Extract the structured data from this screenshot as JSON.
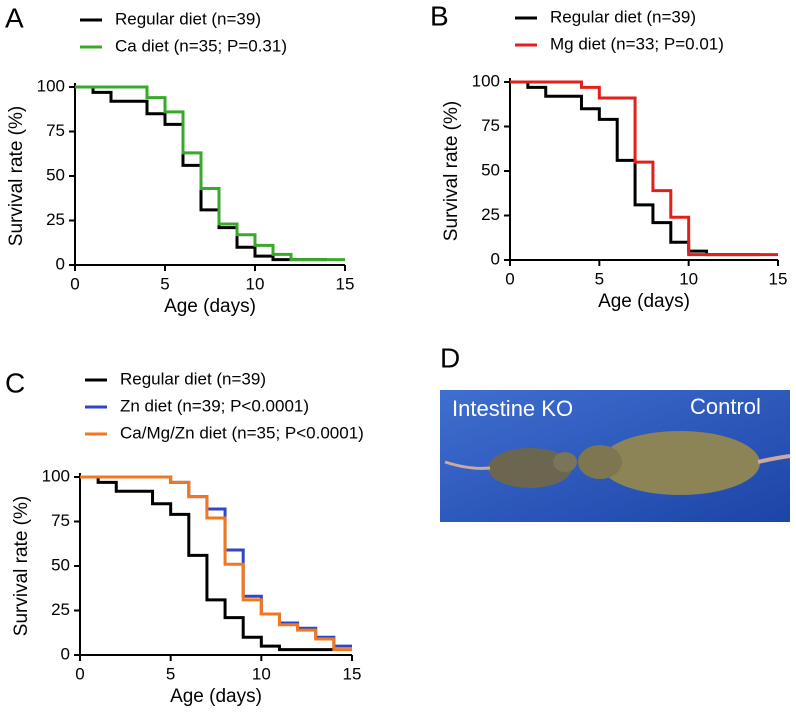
{
  "chart_data": [
    {
      "type": "step",
      "label": "A",
      "xlabel": "Age (days)",
      "ylabel": "Survival rate (%)",
      "xlim": [
        0,
        15
      ],
      "ylim": [
        0,
        100
      ],
      "xticks": [
        0,
        5,
        10,
        15
      ],
      "yticks": [
        0,
        25,
        50,
        75,
        100
      ],
      "series": [
        {
          "name": "Regular diet (n=39)",
          "color": "#000000",
          "x": [
            0,
            1,
            2,
            4,
            5,
            6,
            7,
            8,
            9,
            10,
            11,
            14
          ],
          "values": [
            100,
            97,
            92,
            85,
            79,
            56,
            31,
            21,
            10,
            5,
            3,
            3
          ]
        },
        {
          "name": "Ca diet (n=35; P=0.31)",
          "color": "#3aa82a",
          "x": [
            0,
            4,
            5,
            6,
            7,
            8,
            9,
            10,
            11,
            12,
            15
          ],
          "values": [
            100,
            94,
            86,
            63,
            43,
            23,
            17,
            11,
            6,
            3,
            3
          ]
        }
      ]
    },
    {
      "type": "step",
      "label": "B",
      "xlabel": "Age (days)",
      "ylabel": "Survival rate (%)",
      "xlim": [
        0,
        15
      ],
      "ylim": [
        0,
        100
      ],
      "xticks": [
        0,
        5,
        10,
        15
      ],
      "yticks": [
        0,
        25,
        50,
        75,
        100
      ],
      "series": [
        {
          "name": "Regular diet (n=39)",
          "color": "#000000",
          "x": [
            0,
            1,
            2,
            4,
            5,
            6,
            7,
            8,
            9,
            10,
            11,
            14
          ],
          "values": [
            100,
            97,
            92,
            85,
            79,
            56,
            31,
            21,
            10,
            5,
            3,
            3
          ]
        },
        {
          "name": "Mg diet (n=33; P=0.01)",
          "color": "#e0201c",
          "x": [
            0,
            4,
            5,
            7,
            8,
            9,
            10,
            15
          ],
          "values": [
            100,
            97,
            91,
            55,
            39,
            24,
            3,
            3
          ]
        }
      ]
    },
    {
      "type": "step",
      "label": "C",
      "xlabel": "Age (days)",
      "ylabel": "Survival rate (%)",
      "xlim": [
        0,
        15
      ],
      "ylim": [
        0,
        100
      ],
      "xticks": [
        0,
        5,
        10,
        15
      ],
      "yticks": [
        0,
        25,
        50,
        75,
        100
      ],
      "series": [
        {
          "name": "Regular diet (n=39)",
          "color": "#000000",
          "x": [
            0,
            1,
            2,
            4,
            5,
            6,
            7,
            8,
            9,
            10,
            11,
            14
          ],
          "values": [
            100,
            97,
            92,
            85,
            79,
            56,
            31,
            21,
            10,
            5,
            3,
            3
          ]
        },
        {
          "name": "Zn diet (n=39; P<0.0001)",
          "color": "#2f46c8",
          "x": [
            0,
            5,
            6,
            7,
            8,
            9,
            10,
            11,
            12,
            13,
            14,
            15
          ],
          "values": [
            100,
            97,
            89,
            82,
            59,
            33,
            23,
            18,
            15,
            10,
            5,
            5
          ]
        },
        {
          "name": "Ca/Mg/Zn diet (n=35; P<0.0001)",
          "color": "#f07820",
          "x": [
            0,
            5,
            6,
            7,
            8,
            9,
            10,
            11,
            12,
            13,
            14,
            15
          ],
          "values": [
            100,
            97,
            89,
            77,
            51,
            31,
            23,
            17,
            14,
            9,
            3,
            3
          ]
        }
      ]
    }
  ],
  "photo": {
    "label": "D",
    "captions": [
      "Intestine KO",
      "Control"
    ]
  }
}
